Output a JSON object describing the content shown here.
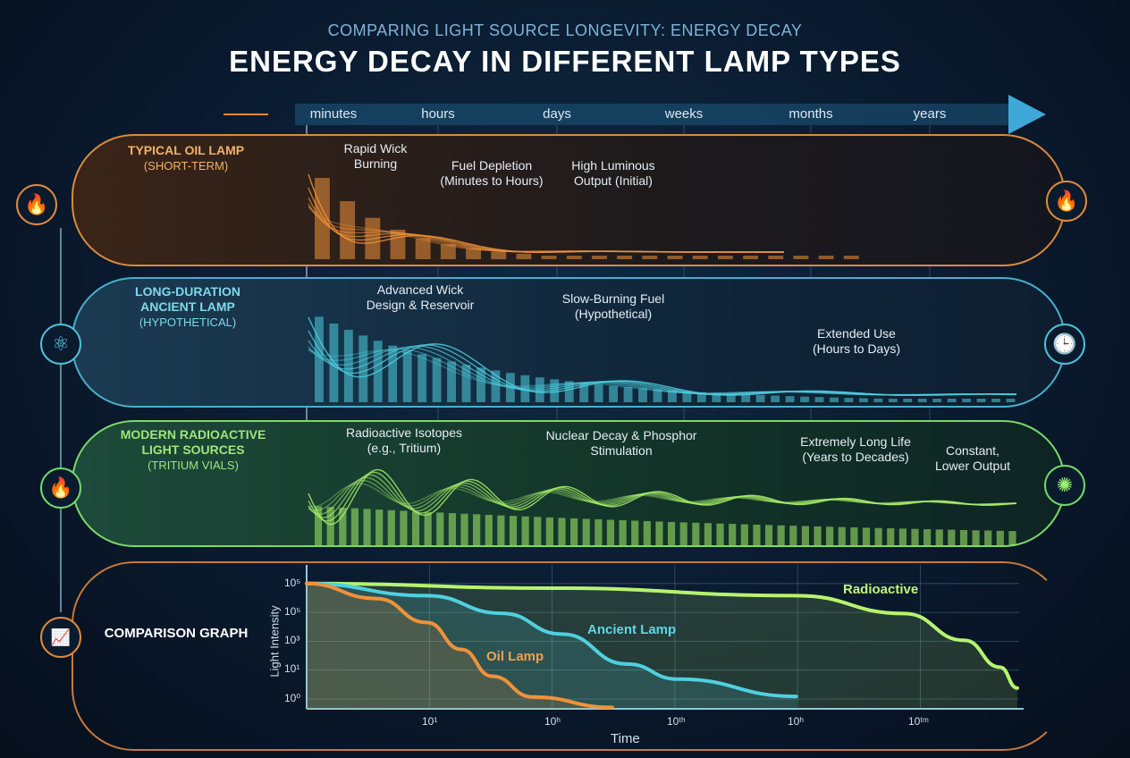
{
  "header": {
    "subtitle": "COMPARING LIGHT SOURCE LONGEVITY: ENERGY DECAY",
    "title": "ENERGY DECAY IN DIFFERENT LAMP TYPES"
  },
  "timeline": [
    "minutes",
    "hours",
    "days",
    "weeks",
    "months",
    "years"
  ],
  "colors": {
    "oil": "#f0923a",
    "ancient": "#4fd0e0",
    "radioactive": "#a8f06a",
    "background": "#0a1a2e"
  },
  "panels": [
    {
      "title": "TYPICAL OIL LAMP",
      "subtitle": "(SHORT-TERM)",
      "icon": "flame-icon",
      "right_icon": "flame-icon",
      "annotations": [
        "Rapid Wick Burning",
        "Fuel Depletion (Minutes to Hours)",
        "High Luminous Output (Initial)"
      ]
    },
    {
      "title": "LONG-DURATION ANCIENT LAMP",
      "subtitle": "(HYPOTHETICAL)",
      "icon": "atom-icon",
      "right_icon": "clock-icon",
      "annotations": [
        "Advanced Wick Design & Reservoir",
        "Slow-Burning Fuel (Hypothetical)",
        "Extended Use (Hours to Days)"
      ]
    },
    {
      "title": "MODERN RADIOACTIVE LIGHT SOURCES",
      "subtitle": "(TRITIUM VIALS)",
      "icon": "campfire-icon",
      "right_icon": "glow-orb-icon",
      "annotations": [
        "Radioactive Isotopes (e.g., Tritium)",
        "Nuclear Decay & Phosphor Stimulation",
        "Extremely Long Life (Years to Decades)",
        "Constant, Lower Output"
      ]
    }
  ],
  "comparison": {
    "title": "COMPARISON GRAPH",
    "icon": "growth-chart-icon"
  },
  "chart_data": {
    "type": "line",
    "xlabel": "Time",
    "ylabel": "Light Intensity",
    "x_ticks": [
      "10¹",
      "10ʰ",
      "10ᵗʰ",
      "10ʰ",
      "10ᵗᵐ"
    ],
    "y_ticks": [
      "10⁰",
      "10¹",
      "10³",
      "10⁵",
      "10⁵"
    ],
    "note_axes": "log-style axes; point coordinates given in tick-index units",
    "series": [
      {
        "name": "Oil Lamp",
        "color": "#f0923a",
        "points": [
          [
            0,
            4
          ],
          [
            0.57,
            3.48
          ],
          [
            0.98,
            2.65
          ],
          [
            1.26,
            1.72
          ],
          [
            1.51,
            0.79
          ],
          [
            1.84,
            0.07
          ],
          [
            2.49,
            -0.29
          ]
        ]
      },
      {
        "name": "Ancient Lamp",
        "color": "#4fd0e0",
        "points": [
          [
            0,
            4
          ],
          [
            0.98,
            3.58
          ],
          [
            1.59,
            2.97
          ],
          [
            2.08,
            2.25
          ],
          [
            2.61,
            1.21
          ],
          [
            3.02,
            0.69
          ],
          [
            3.99,
            0.09
          ]
        ]
      },
      {
        "name": "Radioactive",
        "color": "#b6f46e",
        "points": [
          [
            0,
            4
          ],
          [
            2.0,
            3.84
          ],
          [
            3.99,
            3.58
          ],
          [
            4.87,
            2.96
          ],
          [
            5.36,
            2.03
          ],
          [
            5.65,
            1.1
          ],
          [
            5.79,
            0.38
          ]
        ]
      }
    ]
  }
}
